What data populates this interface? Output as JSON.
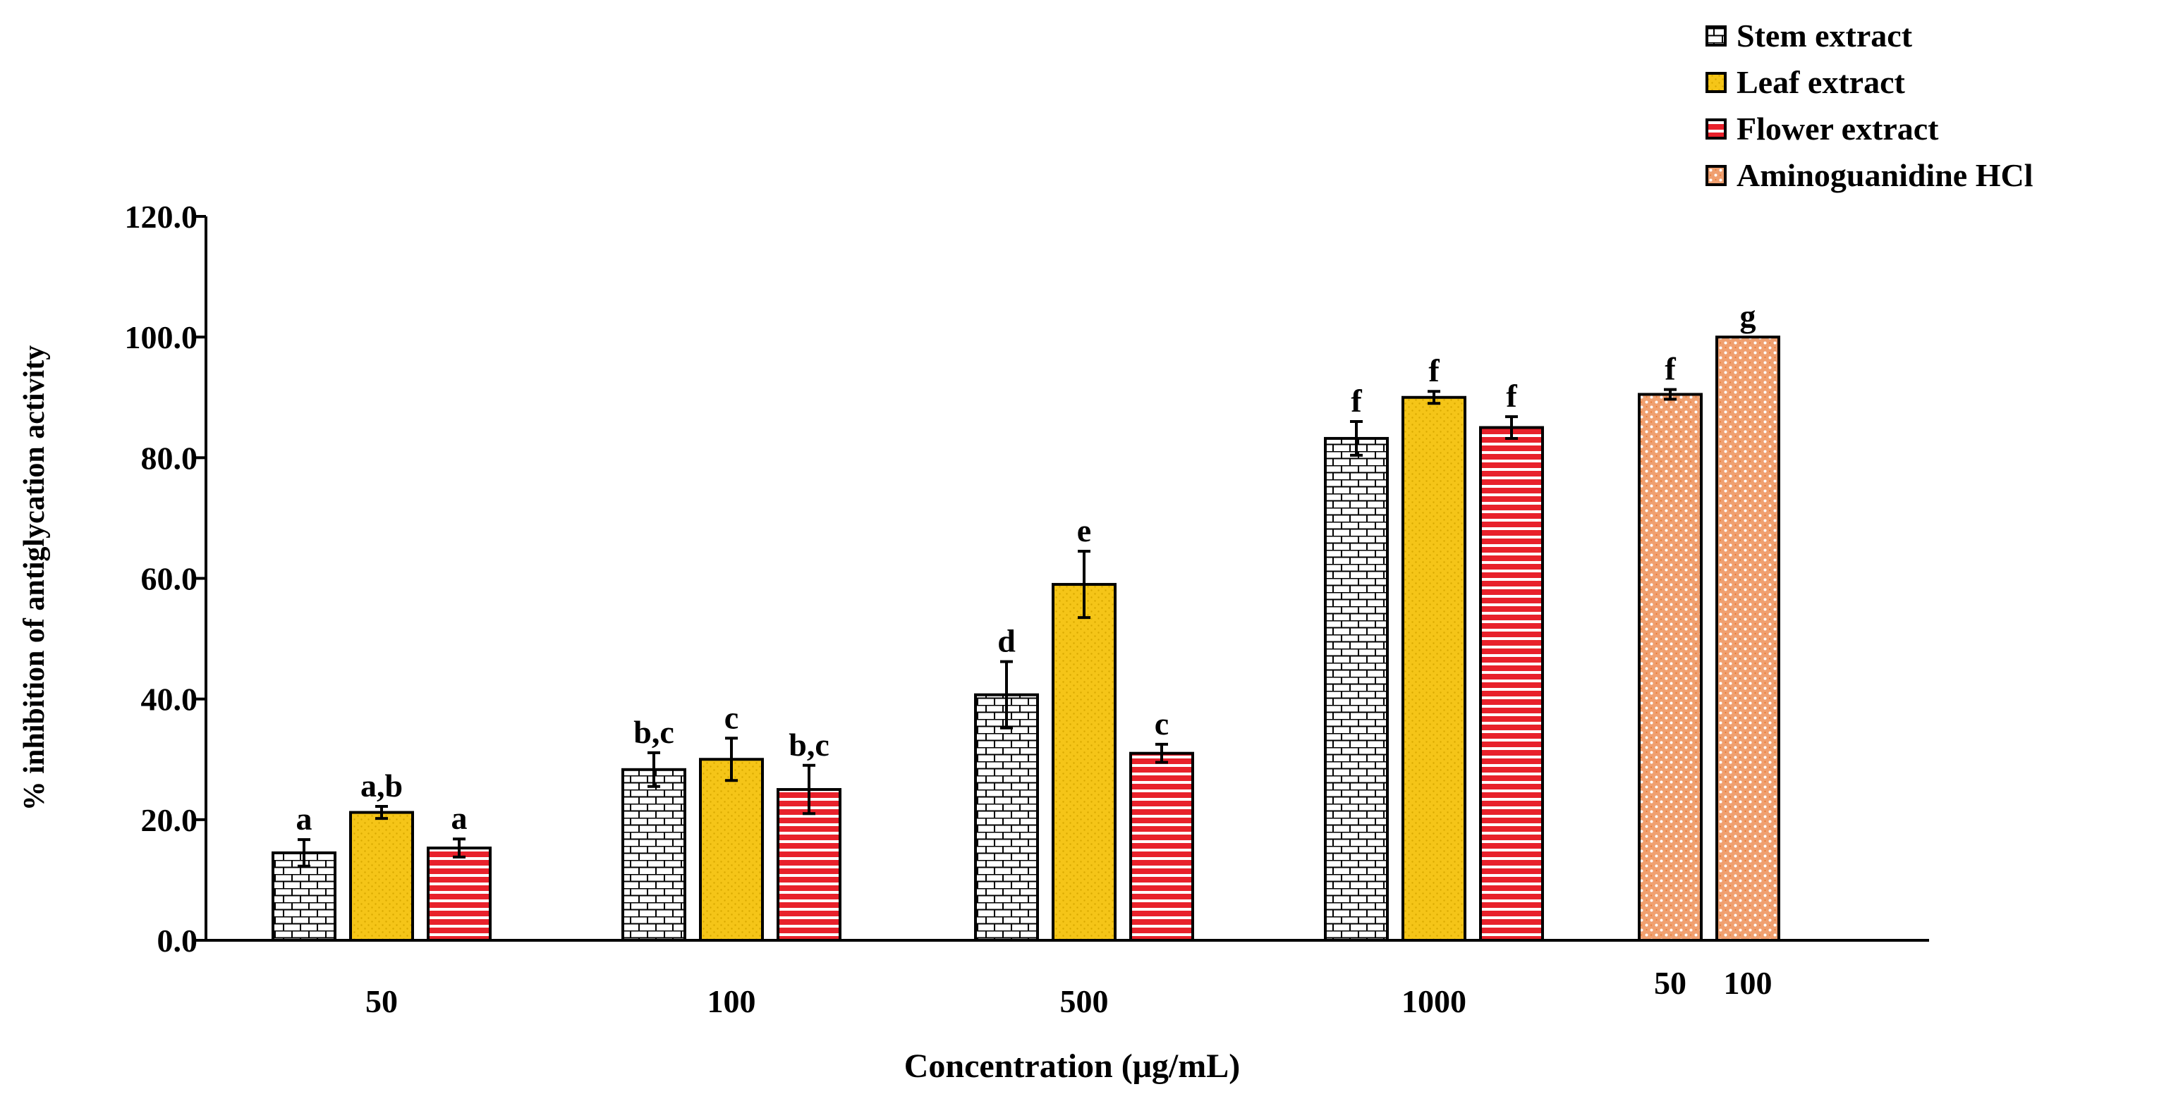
{
  "chart_data": {
    "type": "bar",
    "title": "",
    "xlabel": "Concentration (μg/mL)",
    "ylabel": "% inhibition of antiglycation activity",
    "ylim": [
      0,
      120
    ],
    "yticks": [
      0,
      20,
      40,
      60,
      80,
      100,
      120
    ],
    "ytick_labels": [
      "0.0",
      "20.0",
      "40.0",
      "60.0",
      "80.0",
      "100.0",
      "120.0"
    ],
    "legend_position": "top-right",
    "series": [
      {
        "name": "Stem extract",
        "color": "#ffffff",
        "pattern": "bricks",
        "pattern_color": "#000000"
      },
      {
        "name": "Leaf extract",
        "color": "#f5c518",
        "pattern": "dots",
        "pattern_color": "#d9a900"
      },
      {
        "name": "Flower extract",
        "color": "#e8212b",
        "pattern": "horizontal-stripes",
        "pattern_color": "#ffffff"
      },
      {
        "name": "Aminoguanidine HCl",
        "color": "#f0a070",
        "pattern": "confetti",
        "pattern_color": "#ffffff"
      }
    ],
    "groups": [
      {
        "label": "50",
        "bars": [
          {
            "series": 0,
            "value": 14.5,
            "error": 2.2,
            "annotation": "a"
          },
          {
            "series": 1,
            "value": 21.2,
            "error": 1.0,
            "annotation": "a,b"
          },
          {
            "series": 2,
            "value": 15.3,
            "error": 1.5,
            "annotation": "a"
          }
        ]
      },
      {
        "label": "100",
        "bars": [
          {
            "series": 0,
            "value": 28.3,
            "error": 2.8,
            "annotation": "b,c"
          },
          {
            "series": 1,
            "value": 30.0,
            "error": 3.5,
            "annotation": "c"
          },
          {
            "series": 2,
            "value": 25.0,
            "error": 4.0,
            "annotation": "b,c"
          }
        ]
      },
      {
        "label": "500",
        "bars": [
          {
            "series": 0,
            "value": 40.7,
            "error": 5.5,
            "annotation": "d"
          },
          {
            "series": 1,
            "value": 59.0,
            "error": 5.5,
            "annotation": "e"
          },
          {
            "series": 2,
            "value": 31.0,
            "error": 1.5,
            "annotation": "c"
          }
        ]
      },
      {
        "label": "1000",
        "bars": [
          {
            "series": 0,
            "value": 83.2,
            "error": 2.8,
            "annotation": "f"
          },
          {
            "series": 1,
            "value": 90.0,
            "error": 1.0,
            "annotation": "f"
          },
          {
            "series": 2,
            "value": 85.0,
            "error": 1.8,
            "annotation": "f"
          }
        ]
      },
      {
        "label": "",
        "bars": [
          {
            "series": 3,
            "value": 90.5,
            "error": 0.8,
            "annotation": "f",
            "sublabel": "50"
          },
          {
            "series": 3,
            "value": 100.0,
            "error": 0.0,
            "annotation": "g",
            "sublabel": "100"
          }
        ]
      }
    ]
  }
}
